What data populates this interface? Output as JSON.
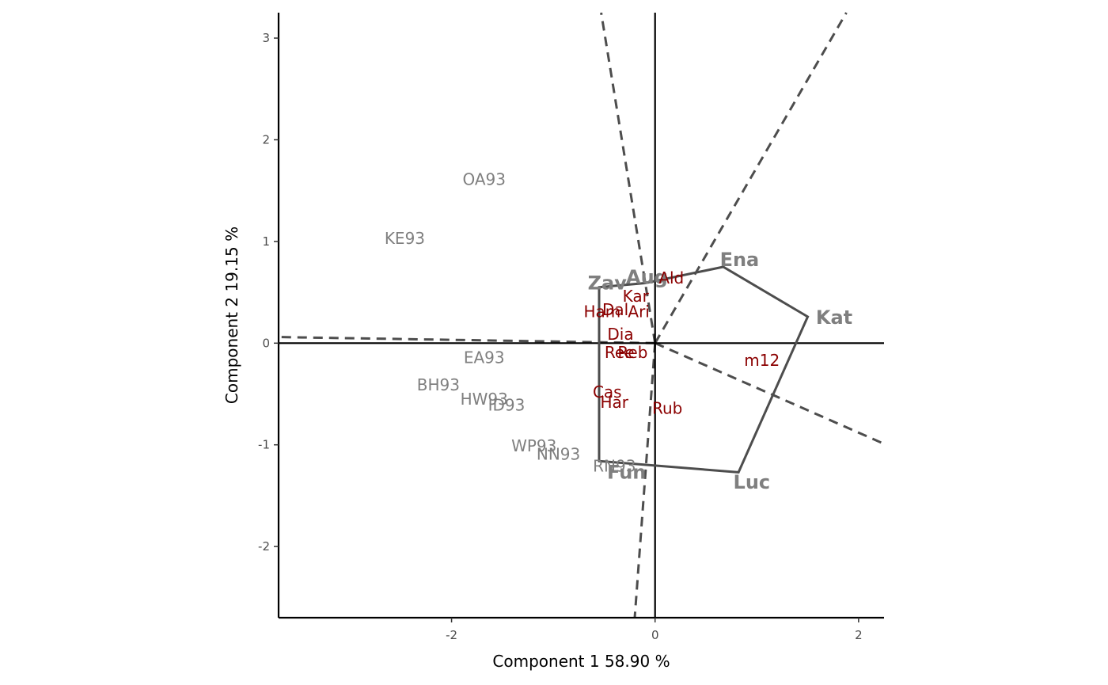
{
  "chart_data": {
    "type": "scatter",
    "subtype": "GGE biplot (which-won-where)",
    "xlabel": "Component 1 58.90 %",
    "ylabel": "Component 2 19.15 %",
    "xlim": [
      -3.7,
      2.25
    ],
    "ylim": [
      -2.7,
      3.25
    ],
    "x_ticks": [
      -2,
      0,
      2
    ],
    "y_ticks": [
      -2,
      -1,
      0,
      1,
      2,
      3
    ],
    "grid": false,
    "legend": "none",
    "colors": {
      "environment": "#7f7f7f",
      "genotype": "#8b0000",
      "polygon": "#4d4d4d",
      "axis": "#000000"
    },
    "environments": [
      {
        "label": "OA93",
        "x": -1.68,
        "y": 1.61
      },
      {
        "label": "KE93",
        "x": -2.46,
        "y": 1.03
      },
      {
        "label": "EA93",
        "x": -1.68,
        "y": -0.14
      },
      {
        "label": "BH93",
        "x": -2.13,
        "y": -0.41
      },
      {
        "label": "HW93",
        "x": -1.68,
        "y": -0.55
      },
      {
        "label": "ID93",
        "x": -1.46,
        "y": -0.61
      },
      {
        "label": "WP93",
        "x": -1.19,
        "y": -1.01
      },
      {
        "label": "NN93",
        "x": -0.95,
        "y": -1.09
      },
      {
        "label": "RN93",
        "x": -0.4,
        "y": -1.21
      }
    ],
    "genotypes": [
      {
        "label": "Zav",
        "x": -0.47,
        "y": 0.59,
        "vertex": true
      },
      {
        "label": "Aug",
        "x": -0.08,
        "y": 0.65,
        "vertex": true
      },
      {
        "label": "Ena",
        "x": 0.83,
        "y": 0.82,
        "vertex": true
      },
      {
        "label": "Kat",
        "x": 1.76,
        "y": 0.25,
        "vertex": true
      },
      {
        "label": "Luc",
        "x": 0.95,
        "y": -1.37,
        "vertex": true
      },
      {
        "label": "Fun",
        "x": -0.28,
        "y": -1.27,
        "vertex": true
      },
      {
        "label": "Ald",
        "x": 0.16,
        "y": 0.64,
        "vertex": false
      },
      {
        "label": "Kar",
        "x": -0.19,
        "y": 0.46,
        "vertex": false
      },
      {
        "label": "Ham",
        "x": -0.52,
        "y": 0.31,
        "vertex": false
      },
      {
        "label": "Dal",
        "x": -0.39,
        "y": 0.33,
        "vertex": false
      },
      {
        "label": "Ari",
        "x": -0.16,
        "y": 0.31,
        "vertex": false
      },
      {
        "label": "Dia",
        "x": -0.34,
        "y": 0.09,
        "vertex": false
      },
      {
        "label": "Ree",
        "x": -0.35,
        "y": -0.09,
        "vertex": false
      },
      {
        "label": "Reb",
        "x": -0.22,
        "y": -0.09,
        "vertex": false
      },
      {
        "label": "m12",
        "x": 1.05,
        "y": -0.17,
        "vertex": false
      },
      {
        "label": "Cas",
        "x": -0.47,
        "y": -0.48,
        "vertex": false
      },
      {
        "label": "Har",
        "x": -0.4,
        "y": -0.58,
        "vertex": false
      },
      {
        "label": "Rub",
        "x": 0.12,
        "y": -0.64,
        "vertex": false
      }
    ],
    "polygon": [
      [
        -0.55,
        0.55
      ],
      [
        -0.1,
        0.59
      ],
      [
        0.67,
        0.75
      ],
      [
        1.5,
        0.26
      ],
      [
        0.82,
        -1.27
      ],
      [
        -0.55,
        -1.16
      ]
    ],
    "rays": [
      {
        "from": [
          0,
          0
        ],
        "to": [
          -0.53,
          3.25
        ]
      },
      {
        "from": [
          0,
          0
        ],
        "to": [
          1.88,
          3.25
        ]
      },
      {
        "from": [
          0,
          0
        ],
        "to": [
          2.25,
          -0.99
        ]
      },
      {
        "from": [
          0,
          0
        ],
        "to": [
          -3.7,
          0.06
        ]
      },
      {
        "from": [
          0,
          0
        ],
        "to": [
          -0.2,
          -2.7
        ]
      }
    ]
  }
}
